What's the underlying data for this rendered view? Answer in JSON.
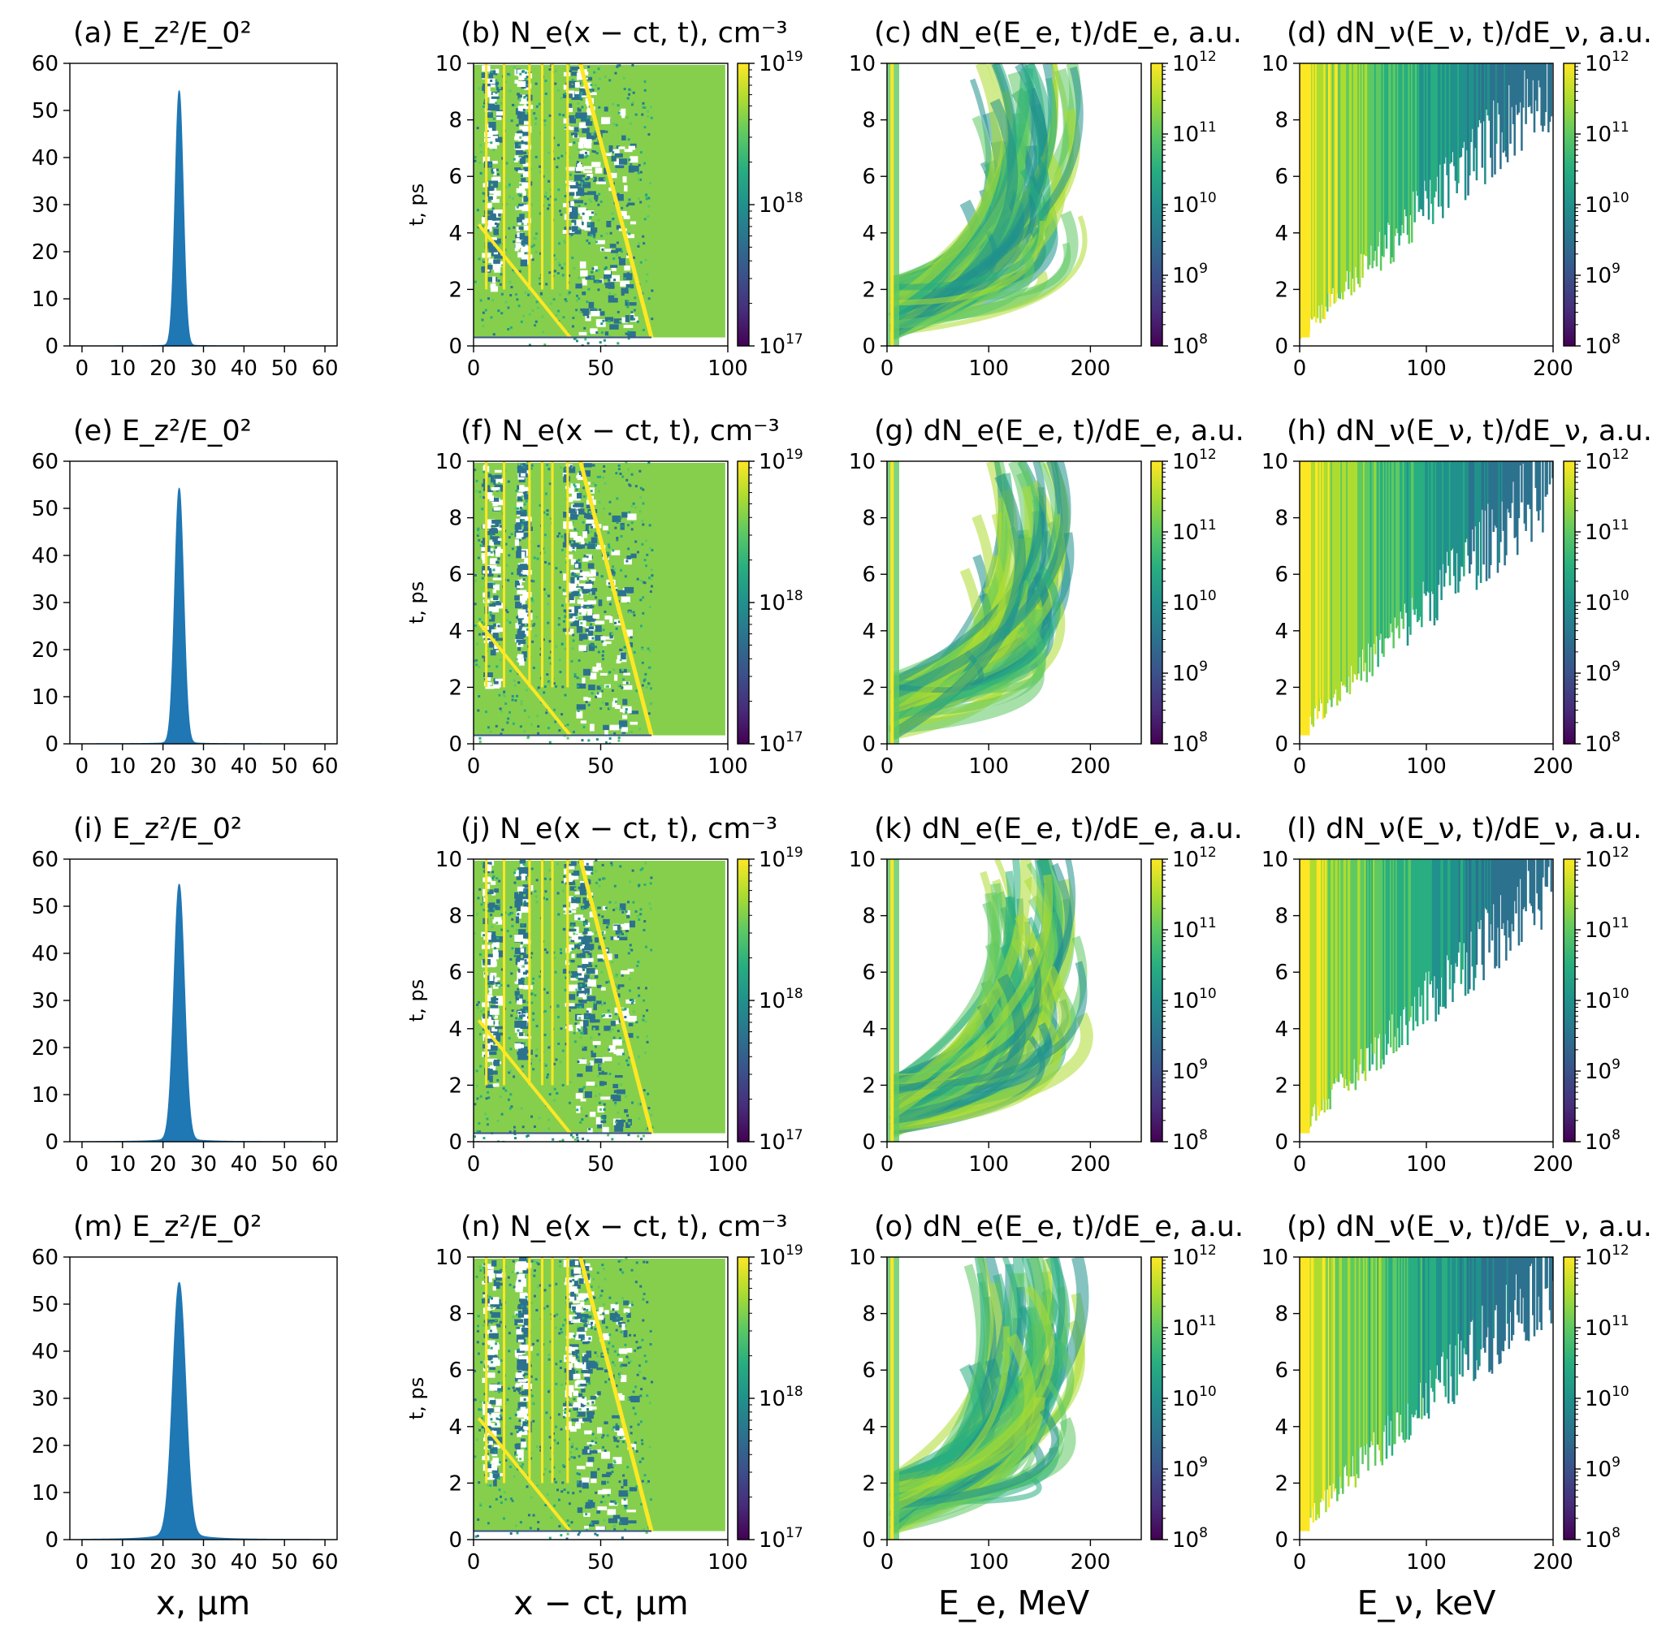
{
  "figure": {
    "column_xlabels": [
      "x, μm",
      "x − ct, μm",
      "E_e, MeV",
      "E_ν, keV"
    ],
    "density_ylabel": "t, ps"
  },
  "colormap": [
    "#440154",
    "#472d7b",
    "#3b528b",
    "#2c728e",
    "#21918c",
    "#28ae80",
    "#5ec962",
    "#addc30",
    "#fde725"
  ],
  "peak_color": "#1f77b4",
  "chart_data": [
    {
      "panel": "a",
      "type": "area",
      "title": "(a) E_z²/E_0²",
      "x_range": [
        -3,
        63
      ],
      "ylim": [
        0,
        60
      ],
      "x_ticks": [
        0,
        10,
        20,
        30,
        40,
        50,
        60
      ],
      "y_ticks": [
        0,
        10,
        20,
        30,
        40,
        50,
        60
      ],
      "peak_center": 24,
      "peak_value": 54,
      "peak_width": 1.0,
      "background_wing": 0.05
    },
    {
      "panel": "b",
      "type": "heatmap",
      "title": "(b) N_e(x − ct, t), cm⁻³",
      "xlim": [
        0,
        100
      ],
      "ylim": [
        0,
        10
      ],
      "x_ticks": [
        0,
        50,
        100
      ],
      "y_ticks": [
        0,
        2,
        4,
        6,
        8,
        10
      ],
      "colorbar": {
        "min_exp": 17,
        "max_exp": 19,
        "tick_exps": [
          17,
          18,
          19
        ]
      }
    },
    {
      "panel": "c",
      "type": "heatmap",
      "title": "(c) dN_e(E_e, t)/dE_e, a.u.",
      "xlim": [
        0,
        250
      ],
      "ylim": [
        0,
        10
      ],
      "x_ticks": [
        0,
        100,
        200
      ],
      "y_ticks": [
        0,
        2,
        4,
        6,
        8,
        10
      ],
      "colorbar": {
        "min_exp": 8,
        "max_exp": 12,
        "tick_exps": [
          8,
          9,
          10,
          11,
          12
        ]
      }
    },
    {
      "panel": "d",
      "type": "heatmap",
      "title": "(d) dN_ν(E_ν, t)/dE_ν, a.u.",
      "xlim": [
        0,
        200
      ],
      "ylim": [
        0,
        10
      ],
      "x_ticks": [
        0,
        100,
        200
      ],
      "y_ticks": [
        0,
        2,
        4,
        6,
        8,
        10
      ],
      "colorbar": {
        "min_exp": 8,
        "max_exp": 12,
        "tick_exps": [
          8,
          9,
          10,
          11,
          12
        ]
      }
    },
    {
      "panel": "e",
      "type": "area",
      "title": "(e) E_z²/E_0²",
      "x_range": [
        -3,
        63
      ],
      "ylim": [
        0,
        60
      ],
      "x_ticks": [
        0,
        10,
        20,
        30,
        40,
        50,
        60
      ],
      "y_ticks": [
        0,
        10,
        20,
        30,
        40,
        50,
        60
      ],
      "peak_center": 24,
      "peak_value": 54,
      "peak_width": 1.1,
      "background_wing": 0.08
    },
    {
      "panel": "f",
      "type": "heatmap",
      "title": "(f) N_e(x − ct, t), cm⁻³",
      "xlim": [
        0,
        100
      ],
      "ylim": [
        0,
        10
      ],
      "x_ticks": [
        0,
        50,
        100
      ],
      "y_ticks": [
        0,
        2,
        4,
        6,
        8,
        10
      ],
      "colorbar": {
        "min_exp": 17,
        "max_exp": 19,
        "tick_exps": [
          17,
          18,
          19
        ]
      }
    },
    {
      "panel": "g",
      "type": "heatmap",
      "title": "(g) dN_e(E_e, t)/dE_e, a.u.",
      "xlim": [
        0,
        250
      ],
      "ylim": [
        0,
        10
      ],
      "x_ticks": [
        0,
        100,
        200
      ],
      "y_ticks": [
        0,
        2,
        4,
        6,
        8,
        10
      ],
      "colorbar": {
        "min_exp": 8,
        "max_exp": 12,
        "tick_exps": [
          8,
          9,
          10,
          11,
          12
        ]
      }
    },
    {
      "panel": "h",
      "type": "heatmap",
      "title": "(h) dN_ν(E_ν, t)/dE_ν, a.u.",
      "xlim": [
        0,
        200
      ],
      "ylim": [
        0,
        10
      ],
      "x_ticks": [
        0,
        100,
        200
      ],
      "y_ticks": [
        0,
        2,
        4,
        6,
        8,
        10
      ],
      "colorbar": {
        "min_exp": 8,
        "max_exp": 12,
        "tick_exps": [
          8,
          9,
          10,
          11,
          12
        ]
      }
    },
    {
      "panel": "i",
      "type": "area",
      "title": "(i) E_z²/E_0²",
      "x_range": [
        -3,
        63
      ],
      "ylim": [
        0,
        60
      ],
      "x_ticks": [
        0,
        10,
        20,
        30,
        40,
        50,
        60
      ],
      "y_ticks": [
        0,
        10,
        20,
        30,
        40,
        50,
        60
      ],
      "peak_center": 24,
      "peak_value": 54,
      "peak_width": 1.3,
      "background_wing": 0.2
    },
    {
      "panel": "j",
      "type": "heatmap",
      "title": "(j) N_e(x − ct, t), cm⁻³",
      "xlim": [
        0,
        100
      ],
      "ylim": [
        0,
        10
      ],
      "x_ticks": [
        0,
        50,
        100
      ],
      "y_ticks": [
        0,
        2,
        4,
        6,
        8,
        10
      ],
      "colorbar": {
        "min_exp": 17,
        "max_exp": 19,
        "tick_exps": [
          17,
          18,
          19
        ]
      }
    },
    {
      "panel": "k",
      "type": "heatmap",
      "title": "(k) dN_e(E_e, t)/dE_e, a.u.",
      "xlim": [
        0,
        250
      ],
      "ylim": [
        0,
        10
      ],
      "x_ticks": [
        0,
        100,
        200
      ],
      "y_ticks": [
        0,
        2,
        4,
        6,
        8,
        10
      ],
      "colorbar": {
        "min_exp": 8,
        "max_exp": 12,
        "tick_exps": [
          8,
          9,
          10,
          11,
          12
        ]
      }
    },
    {
      "panel": "l",
      "type": "heatmap",
      "title": "(l) dN_ν(E_ν, t)/dE_ν, a.u.",
      "xlim": [
        0,
        200
      ],
      "ylim": [
        0,
        10
      ],
      "x_ticks": [
        0,
        100,
        200
      ],
      "y_ticks": [
        0,
        2,
        4,
        6,
        8,
        10
      ],
      "colorbar": {
        "min_exp": 8,
        "max_exp": 12,
        "tick_exps": [
          8,
          9,
          10,
          11,
          12
        ]
      }
    },
    {
      "panel": "m",
      "type": "area",
      "title": "(m) E_z²/E_0²",
      "x_range": [
        -3,
        63
      ],
      "ylim": [
        0,
        60
      ],
      "x_ticks": [
        0,
        10,
        20,
        30,
        40,
        50,
        60
      ],
      "y_ticks": [
        0,
        10,
        20,
        30,
        40,
        50,
        60
      ],
      "peak_center": 24,
      "peak_value": 53,
      "peak_width": 1.6,
      "background_wing": 0.5
    },
    {
      "panel": "n",
      "type": "heatmap",
      "title": "(n) N_e(x − ct, t), cm⁻³",
      "xlim": [
        0,
        100
      ],
      "ylim": [
        0,
        10
      ],
      "x_ticks": [
        0,
        50,
        100
      ],
      "y_ticks": [
        0,
        2,
        4,
        6,
        8,
        10
      ],
      "colorbar": {
        "min_exp": 17,
        "max_exp": 19,
        "tick_exps": [
          17,
          18,
          19
        ]
      }
    },
    {
      "panel": "o",
      "type": "heatmap",
      "title": "(o) dN_e(E_e, t)/dE_e, a.u.",
      "xlim": [
        0,
        250
      ],
      "ylim": [
        0,
        10
      ],
      "x_ticks": [
        0,
        100,
        200
      ],
      "y_ticks": [
        0,
        2,
        4,
        6,
        8,
        10
      ],
      "colorbar": {
        "min_exp": 8,
        "max_exp": 12,
        "tick_exps": [
          8,
          9,
          10,
          11,
          12
        ]
      }
    },
    {
      "panel": "p",
      "type": "heatmap",
      "title": "(p) dN_ν(E_ν, t)/dE_ν, a.u.",
      "xlim": [
        0,
        200
      ],
      "ylim": [
        0,
        10
      ],
      "x_ticks": [
        0,
        100,
        200
      ],
      "y_ticks": [
        0,
        2,
        4,
        6,
        8,
        10
      ],
      "colorbar": {
        "min_exp": 8,
        "max_exp": 12,
        "tick_exps": [
          8,
          9,
          10,
          11,
          12
        ]
      }
    }
  ]
}
